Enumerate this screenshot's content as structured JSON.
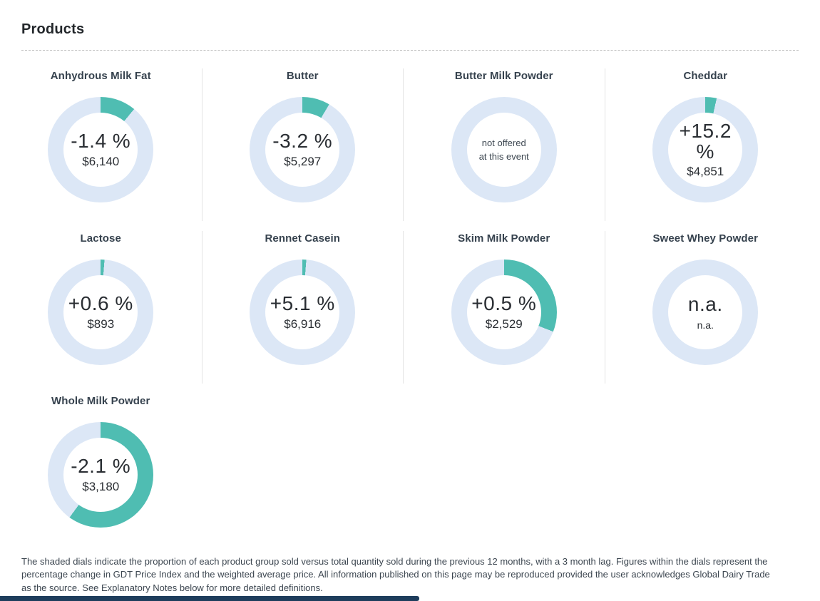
{
  "page": {
    "title": "Products",
    "footer_note": "The shaded dials indicate the proportion of each product group sold versus total quantity sold during the previous 12 months, with a 3 month lag. Figures within the dials represent the percentage change in GDT Price Index and the weighted average price. All information published on this page may be reproduced provided the user acknowledges Global Dairy Trade as the source. See Explanatory Notes below for more detailed definitions."
  },
  "colors": {
    "accent_teal": "#4fbdb2",
    "ring_blue": "#dce7f6",
    "footer_bar_navy": "#1e3d5c"
  },
  "products": [
    {
      "name": "Anhydrous Milk Fat",
      "change": "-1.4 %",
      "price": "$6,140",
      "share": 0.11
    },
    {
      "name": "Butter",
      "change": "-3.2 %",
      "price": "$5,297",
      "share": 0.085
    },
    {
      "name": "Butter Milk Powder",
      "note": [
        "not offered",
        "at this event"
      ],
      "share": 0
    },
    {
      "name": "Cheddar",
      "change": "+15.2 %",
      "price": "$4,851",
      "share": 0.035
    },
    {
      "name": "Lactose",
      "change": "+0.6 %",
      "price": "$893",
      "share": 0.012
    },
    {
      "name": "Rennet Casein",
      "change": "+5.1 %",
      "price": "$6,916",
      "share": 0.012
    },
    {
      "name": "Skim Milk Powder",
      "change": "+0.5 %",
      "price": "$2,529",
      "share": 0.31
    },
    {
      "name": "Sweet Whey Powder",
      "change": "n.a.",
      "price": "n.a.",
      "share": 0
    },
    {
      "name": "Whole Milk Powder",
      "change": "-2.1 %",
      "price": "$3,180",
      "share": 0.6
    }
  ]
}
